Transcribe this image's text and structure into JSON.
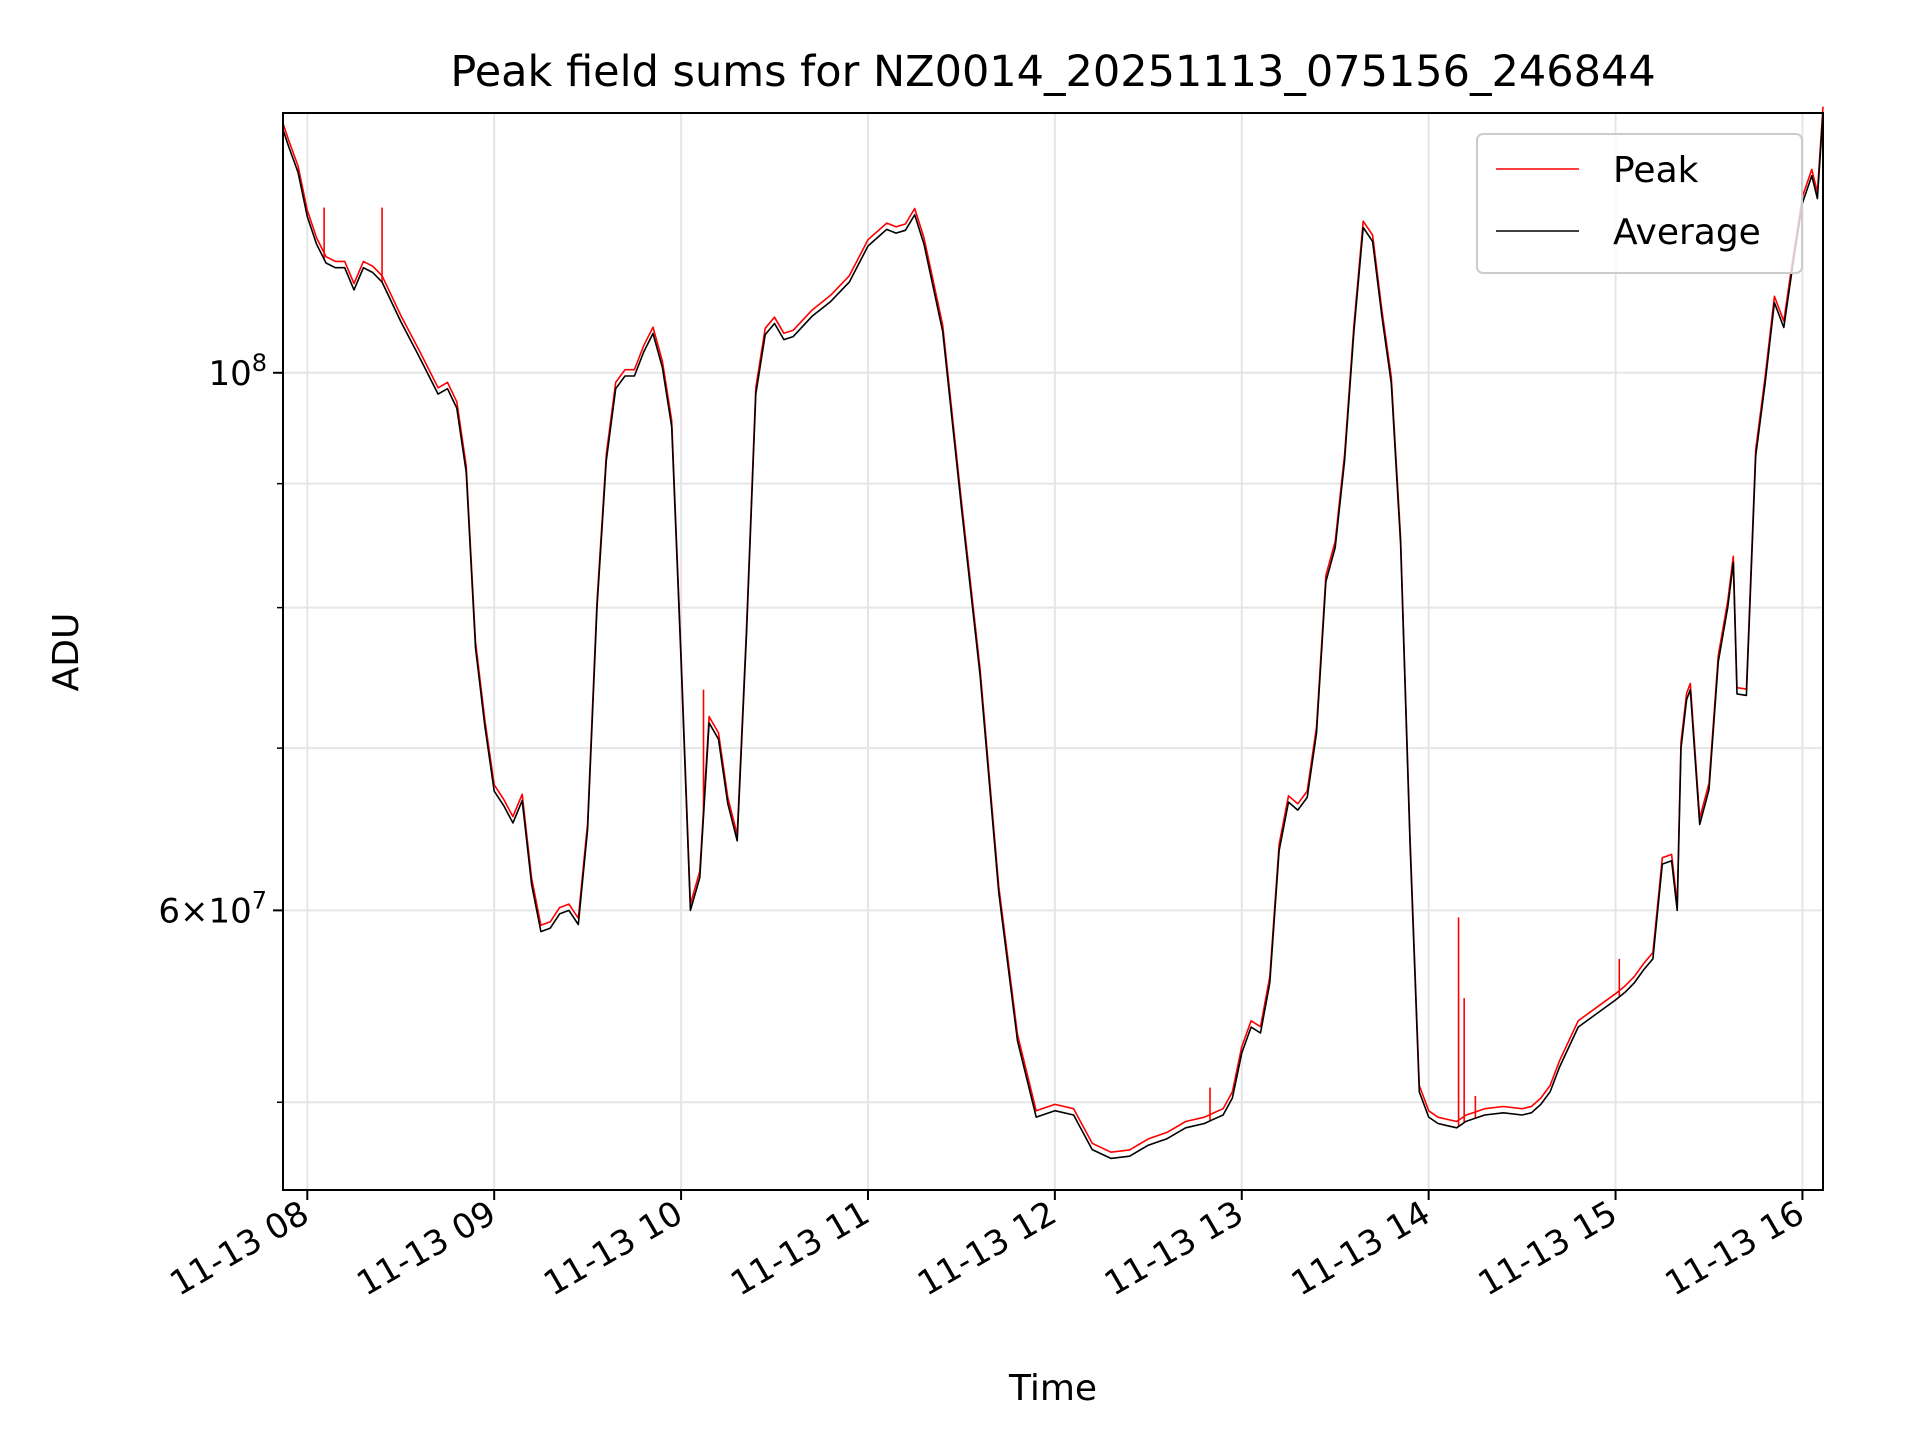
{
  "chart_data": {
    "type": "line",
    "title": "Peak field sums for NZ0014_20251113_075156_246844",
    "xlabel": "Time",
    "ylabel": "ADU",
    "yscale": "log",
    "xlim": [
      7.87,
      16.11
    ],
    "ylim": [
      46000000,
      128000000
    ],
    "x_units": "hours (2025-11-13)",
    "x_ticks": [
      {
        "value": 8,
        "label": "11-13 08"
      },
      {
        "value": 9,
        "label": "11-13 09"
      },
      {
        "value": 10,
        "label": "11-13 10"
      },
      {
        "value": 11,
        "label": "11-13 11"
      },
      {
        "value": 12,
        "label": "11-13 12"
      },
      {
        "value": 13,
        "label": "11-13 13"
      },
      {
        "value": 14,
        "label": "11-13 14"
      },
      {
        "value": 15,
        "label": "11-13 15"
      },
      {
        "value": 16,
        "label": "11-13 16"
      }
    ],
    "y_major_ticks": [
      {
        "value": 100000000,
        "base": "10",
        "exp": "8"
      },
      {
        "value": 60000000,
        "base": "6×10",
        "exp": "7"
      }
    ],
    "y_minor_grid": [
      50000000,
      70000000,
      80000000,
      90000000
    ],
    "grid": true,
    "legend_position": "top-right",
    "series": [
      {
        "name": "Peak",
        "color": "#ff0000",
        "spikes": [
          {
            "x": 8.09,
            "y": 117000000
          },
          {
            "x": 8.4,
            "y": 117000000
          },
          {
            "x": 10.12,
            "y": 74000000
          },
          {
            "x": 12.83,
            "y": 50700000
          },
          {
            "x": 14.16,
            "y": 59600000
          },
          {
            "x": 14.19,
            "y": 55200000
          },
          {
            "x": 14.25,
            "y": 50300000
          },
          {
            "x": 15.02,
            "y": 57300000
          }
        ]
      },
      {
        "name": "Average",
        "color": "#000000",
        "x": [
          7.87,
          7.9,
          7.95,
          8.0,
          8.05,
          8.1,
          8.15,
          8.2,
          8.25,
          8.3,
          8.35,
          8.4,
          8.5,
          8.6,
          8.7,
          8.75,
          8.8,
          8.85,
          8.9,
          8.95,
          9.0,
          9.05,
          9.1,
          9.15,
          9.2,
          9.25,
          9.3,
          9.35,
          9.4,
          9.45,
          9.5,
          9.55,
          9.6,
          9.65,
          9.7,
          9.75,
          9.8,
          9.85,
          9.9,
          9.95,
          10.0,
          10.05,
          10.1,
          10.15,
          10.2,
          10.25,
          10.3,
          10.35,
          10.4,
          10.45,
          10.5,
          10.55,
          10.6,
          10.7,
          10.8,
          10.9,
          11.0,
          11.1,
          11.15,
          11.2,
          11.25,
          11.3,
          11.4,
          11.5,
          11.6,
          11.7,
          11.8,
          11.9,
          12.0,
          12.1,
          12.2,
          12.3,
          12.4,
          12.5,
          12.6,
          12.7,
          12.8,
          12.85,
          12.9,
          12.95,
          13.0,
          13.05,
          13.1,
          13.15,
          13.2,
          13.25,
          13.3,
          13.35,
          13.4,
          13.45,
          13.5,
          13.55,
          13.6,
          13.65,
          13.7,
          13.75,
          13.8,
          13.85,
          13.9,
          13.95,
          14.0,
          14.05,
          14.1,
          14.15,
          14.2,
          14.3,
          14.4,
          14.5,
          14.55,
          14.6,
          14.65,
          14.7,
          14.8,
          14.9,
          15.0,
          15.05,
          15.1,
          15.15,
          15.2,
          15.25,
          15.3,
          15.33,
          15.35,
          15.38,
          15.4,
          15.45,
          15.5,
          15.55,
          15.6,
          15.63,
          15.65,
          15.7,
          15.75,
          15.8,
          15.85,
          15.9,
          15.95,
          16.0,
          16.05,
          16.08,
          16.11
        ],
        "values": [
          126000000,
          124000000,
          121000000,
          116000000,
          113000000,
          111000000,
          110500000,
          110500000,
          108200000,
          110500000,
          110000000,
          109000000,
          105000000,
          101500000,
          98000000,
          98500000,
          96700000,
          91000000,
          77000000,
          71500000,
          67200000,
          66300000,
          65200000,
          66600000,
          61500000,
          58800000,
          59000000,
          59800000,
          60000000,
          59200000,
          64800000,
          80000000,
          92000000,
          98500000,
          99700000,
          99700000,
          102000000,
          103800000,
          100500000,
          95000000,
          76000000,
          60000000,
          61900000,
          71700000,
          70600000,
          66400000,
          64100000,
          78000000,
          98000000,
          103700000,
          104800000,
          103200000,
          103500000,
          105500000,
          107000000,
          109000000,
          112800000,
          114600000,
          114200000,
          114500000,
          116200000,
          113000000,
          104000000,
          88000000,
          75000000,
          61000000,
          53000000,
          49300000,
          49600000,
          49400000,
          47800000,
          47400000,
          47500000,
          48000000,
          48300000,
          48800000,
          49000000,
          49200000,
          49400000,
          50200000,
          52400000,
          53700000,
          53400000,
          56000000,
          63500000,
          66500000,
          66000000,
          66800000,
          71000000,
          82000000,
          84700000,
          92000000,
          104000000,
          114800000,
          113300000,
          105500000,
          99000000,
          85000000,
          64000000,
          50500000,
          49300000,
          49000000,
          48900000,
          48800000,
          49100000,
          49400000,
          49500000,
          49400000,
          49500000,
          49900000,
          50500000,
          51700000,
          53700000,
          54400000,
          55100000,
          55500000,
          56000000,
          56700000,
          57300000,
          62700000,
          62900000,
          60000000,
          70000000,
          73300000,
          74000000,
          65100000,
          67300000,
          76000000,
          80000000,
          83500000,
          73700000,
          73600000,
          92400000,
          99000000,
          106900000,
          104400000,
          111000000,
          117500000,
          120600000,
          118000000,
          128000000
        ]
      }
    ]
  }
}
